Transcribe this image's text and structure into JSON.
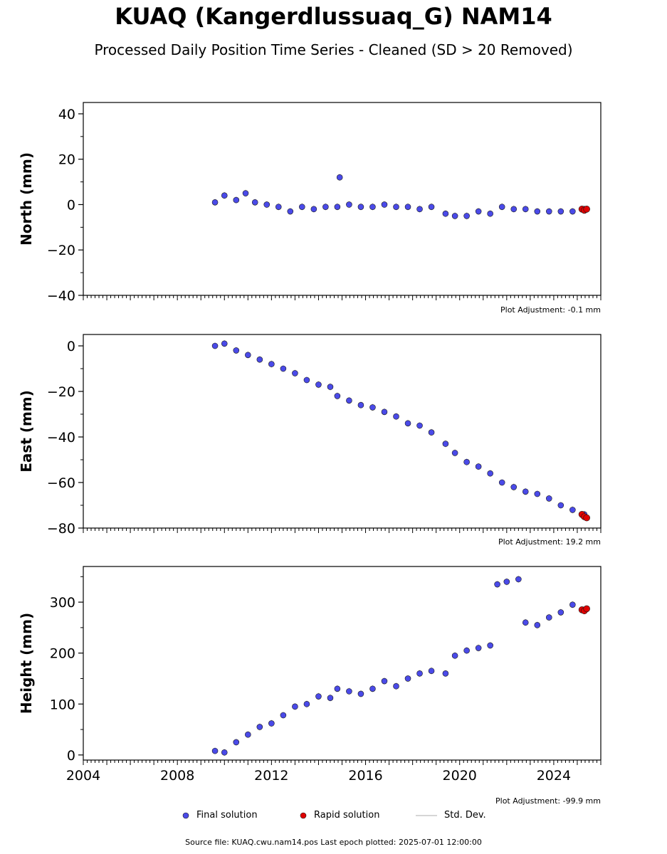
{
  "title": "KUAQ (Kangerdlussuaq_G) NAM14",
  "subtitle": "Processed Daily Position Time Series - Cleaned (SD > 20 Removed)",
  "legend": {
    "final": "Final solution",
    "rapid": "Rapid solution",
    "std": "Std. Dev."
  },
  "source": "Source file: KUAQ.cwu.nam14.pos  Last epoch plotted: 2025-07-01 12:00:00",
  "colors": {
    "final": "#4a4ae8",
    "rapid": "#e00000",
    "std": "#c8c8c8",
    "edge": "#1a1a1a"
  },
  "chart_data": [
    {
      "type": "scatter",
      "ylabel": "North (mm)",
      "ylim": [
        -40,
        45
      ],
      "yticks": [
        -40,
        -20,
        0,
        20,
        40
      ],
      "adjustment": "Plot Adjustment: -0.1 mm",
      "xlim": [
        2004,
        2026
      ],
      "series": [
        {
          "name": "Final solution",
          "x": [
            2009.6,
            2010.0,
            2010.5,
            2010.9,
            2011.3,
            2011.8,
            2012.3,
            2012.8,
            2013.3,
            2013.8,
            2014.3,
            2014.8,
            2014.9,
            2015.3,
            2015.8,
            2016.3,
            2016.8,
            2017.3,
            2017.8,
            2018.3,
            2018.8,
            2019.4,
            2019.8,
            2020.3,
            2020.8,
            2021.3,
            2021.8,
            2022.3,
            2022.8,
            2023.3,
            2023.8,
            2024.3,
            2024.8,
            2025.3
          ],
          "y": [
            1,
            4,
            2,
            5,
            1,
            0,
            -1,
            -3,
            -1,
            -2,
            -1,
            -1,
            12,
            0,
            -1,
            -1,
            0,
            -1,
            -1,
            -2,
            -1,
            -4,
            -5,
            -5,
            -3,
            -4,
            -1,
            -2,
            -2,
            -3,
            -3,
            -3,
            -3,
            -2
          ]
        },
        {
          "name": "Rapid solution",
          "x": [
            2025.2,
            2025.3,
            2025.4
          ],
          "y": [
            -2,
            -2.5,
            -2
          ]
        }
      ]
    },
    {
      "type": "scatter",
      "ylabel": "East (mm)",
      "ylim": [
        -80,
        5
      ],
      "yticks": [
        -80,
        -60,
        -40,
        -20,
        0
      ],
      "adjustment": "Plot Adjustment: 19.2 mm",
      "xlim": [
        2004,
        2026
      ],
      "series": [
        {
          "name": "Final solution",
          "x": [
            2009.6,
            2010.0,
            2010.5,
            2011.0,
            2011.5,
            2012.0,
            2012.5,
            2013.0,
            2013.5,
            2014.0,
            2014.5,
            2014.8,
            2015.3,
            2015.8,
            2016.3,
            2016.8,
            2017.3,
            2017.8,
            2018.3,
            2018.8,
            2019.4,
            2019.8,
            2020.3,
            2020.8,
            2021.3,
            2021.8,
            2022.3,
            2022.8,
            2023.3,
            2023.8,
            2024.3,
            2024.8,
            2025.3
          ],
          "y": [
            0,
            1,
            -2,
            -4,
            -6,
            -8,
            -10,
            -12,
            -15,
            -17,
            -18,
            -22,
            -24,
            -26,
            -27,
            -29,
            -31,
            -34,
            -35,
            -38,
            -43,
            -47,
            -51,
            -53,
            -56,
            -60,
            -62,
            -64,
            -65,
            -67,
            -70,
            -72,
            -74
          ]
        },
        {
          "name": "Rapid solution",
          "x": [
            2025.2,
            2025.3,
            2025.4
          ],
          "y": [
            -74,
            -75,
            -75.5
          ]
        }
      ]
    },
    {
      "type": "scatter",
      "ylabel": "Height (mm)",
      "ylim": [
        -10,
        370
      ],
      "yticks": [
        0,
        100,
        200,
        300
      ],
      "adjustment": "Plot Adjustment: -99.9 mm",
      "xlim": [
        2004,
        2026
      ],
      "xticks": [
        2004,
        2008,
        2012,
        2016,
        2020,
        2024
      ],
      "series": [
        {
          "name": "Final solution",
          "x": [
            2009.6,
            2010.0,
            2010.5,
            2011.0,
            2011.5,
            2012.0,
            2012.5,
            2013.0,
            2013.5,
            2014.0,
            2014.5,
            2014.8,
            2015.3,
            2015.8,
            2016.3,
            2016.8,
            2017.3,
            2017.8,
            2018.3,
            2018.8,
            2019.4,
            2019.8,
            2020.3,
            2020.8,
            2021.3,
            2021.6,
            2022.0,
            2022.5,
            2022.8,
            2023.3,
            2023.8,
            2024.3,
            2024.8,
            2025.3
          ],
          "y": [
            8,
            5,
            25,
            40,
            55,
            62,
            78,
            95,
            100,
            115,
            112,
            130,
            125,
            120,
            130,
            145,
            135,
            150,
            160,
            165,
            160,
            195,
            205,
            210,
            215,
            335,
            340,
            345,
            260,
            255,
            270,
            280,
            295,
            285
          ]
        },
        {
          "name": "Rapid solution",
          "x": [
            2025.2,
            2025.3,
            2025.4
          ],
          "y": [
            285,
            283,
            287
          ]
        }
      ]
    }
  ]
}
